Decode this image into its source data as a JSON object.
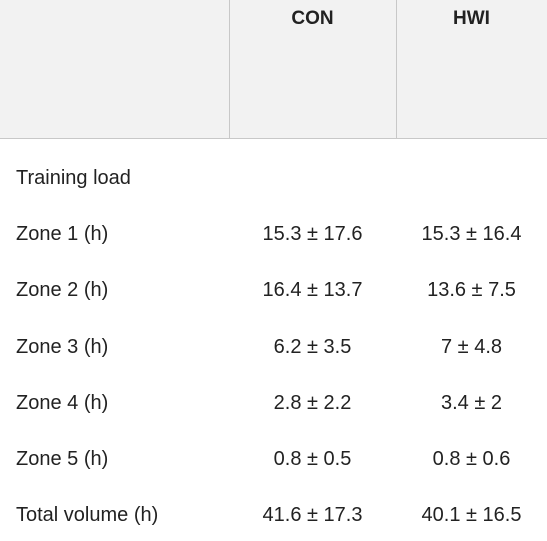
{
  "table": {
    "columns": [
      "CON",
      "HWI"
    ],
    "rows": [
      [
        "Training load"
      ],
      [
        "Zone 1 (h)",
        "15.3 ± 17.6",
        "15.3 ± 16.4"
      ],
      [
        "Zone 2 (h)",
        "16.4 ± 13.7",
        "13.6 ± 7.5"
      ],
      [
        "Zone 3 (h)",
        "6.2 ± 3.5",
        "7 ± 4.8"
      ],
      [
        "Zone 4 (h)",
        "2.8 ± 2.2",
        "3.4 ± 2"
      ],
      [
        "Zone 5 (h)",
        "0.8 ± 0.5",
        "0.8 ± 0.6"
      ],
      [
        "Total volume (h)",
        "41.6 ± 17.3",
        "40.1 ± 16.5"
      ]
    ]
  }
}
